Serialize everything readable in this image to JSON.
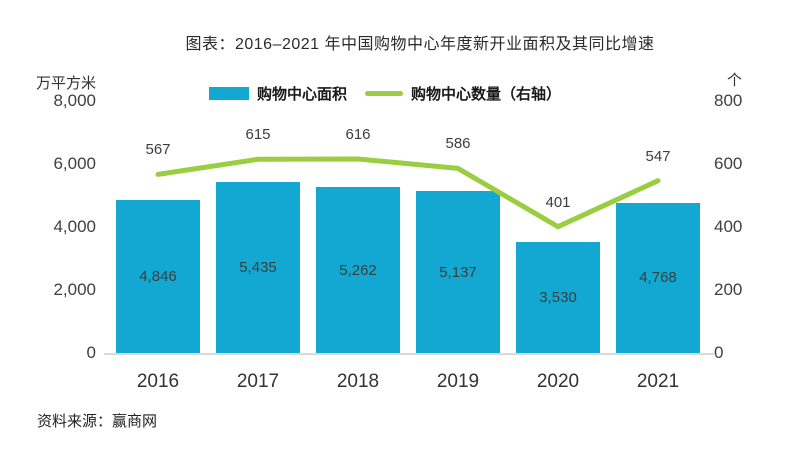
{
  "title": "图表：2016–2021 年中国购物中心年度新开业面积及其同比增速",
  "source": "资料来源：赢商网",
  "axes": {
    "left_unit": "万平方米",
    "right_unit": "个",
    "left_ticks": [
      "8,000",
      "6,000",
      "4,000",
      "2,000",
      "0"
    ],
    "right_ticks": [
      "800",
      "600",
      "400",
      "200",
      "0"
    ]
  },
  "legend": [
    {
      "label": "购物中心面积",
      "type": "bar",
      "color": "#12A8D1"
    },
    {
      "label": "购物中心数量（右轴）",
      "type": "line",
      "color": "#9ACD40"
    }
  ],
  "colors": {
    "bar": "#12A8D1",
    "line": "#9ACD40",
    "value_label": "#3D3D3D",
    "tick_label": "#404040",
    "axis_line": "#D9D9D9",
    "text": "#333333"
  },
  "chart_data": {
    "type": "bar",
    "subtype": "combo-bar-line",
    "title": "图表：2016–2021 年中国购物中心年度新开业面积及其同比增速",
    "categories": [
      "2016",
      "2017",
      "2018",
      "2019",
      "2020",
      "2021"
    ],
    "series": [
      {
        "name": "购物中心面积",
        "type": "bar",
        "axis": "left",
        "values": [
          4846,
          5435,
          5262,
          5137,
          3530,
          4768
        ],
        "labels": [
          "4,846",
          "5,435",
          "5,262",
          "5,137",
          "3,530",
          "4,768"
        ]
      },
      {
        "name": "购物中心数量（右轴）",
        "type": "line",
        "axis": "right",
        "values": [
          567,
          615,
          616,
          586,
          401,
          547
        ],
        "labels": [
          "567",
          "615",
          "616",
          "586",
          "401",
          "547"
        ]
      }
    ],
    "xlabel": "",
    "ylabel_left": "万平方米",
    "ylabel_right": "个",
    "ylim_left": [
      0,
      8000
    ],
    "ylim_right": [
      0,
      800
    ],
    "left_axis_ticks": [
      0,
      2000,
      4000,
      6000,
      8000
    ],
    "right_axis_ticks": [
      0,
      200,
      400,
      600,
      800
    ],
    "grid": false,
    "legend_position": "top"
  }
}
